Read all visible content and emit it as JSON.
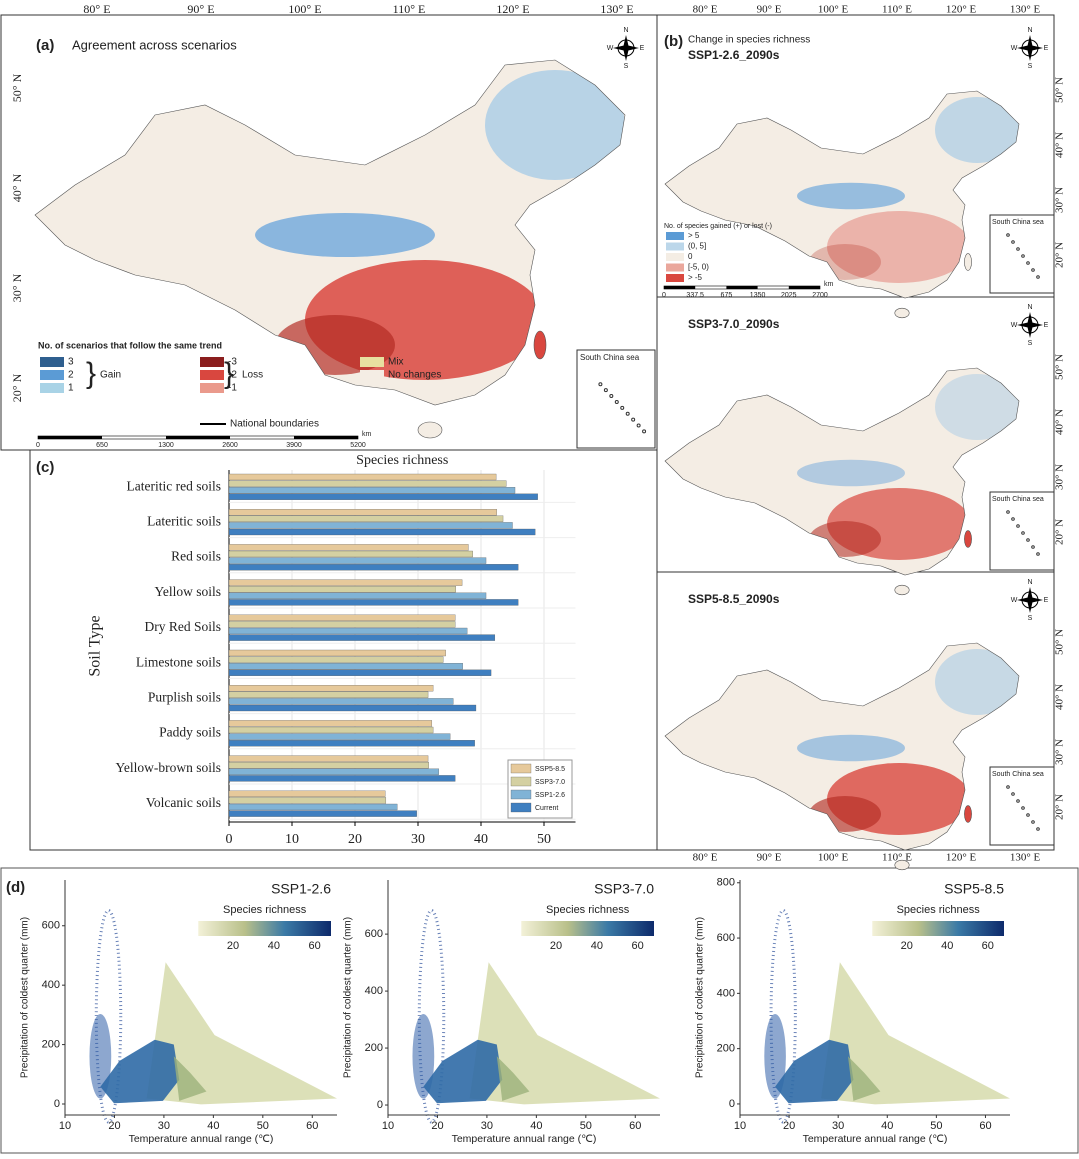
{
  "map_panels": [
    {
      "label": "(a)",
      "title": "Agreement across scenarios",
      "legend_title": "No. of scenarios that follow the same trend",
      "legend_items": [
        {
          "label": "3",
          "color": "#2f5f8f"
        },
        {
          "label": "2",
          "color": "#5b9bd5"
        },
        {
          "label": "1",
          "color": "#a9d3e6"
        },
        {
          "label": "-3",
          "color": "#8b1e1e"
        },
        {
          "label": "-2",
          "color": "#d9473f"
        },
        {
          "label": "-1",
          "color": "#ea9a8c"
        },
        {
          "label": "Mix",
          "color": "#e8e0a0"
        },
        {
          "label": "No changes",
          "color": "#f4ede4"
        }
      ],
      "group_labels": [
        "Gain",
        "Loss"
      ],
      "boundary_label": "National boundaries",
      "scale_labels": [
        "0",
        "650",
        "1300",
        "2600",
        "3900",
        "5200"
      ],
      "scale_unit": "km",
      "inset": "South China sea"
    },
    {
      "label": "(b)",
      "title": "Change in species richness",
      "subpanels": [
        "SSP1-2.6_2090s",
        "SSP3-7.0_2090s",
        "SSP5-8.5_2090s"
      ],
      "legend_title": "No. of species gained (+) or lost (-)",
      "legend_items": [
        {
          "label": "> 5",
          "color": "#5b9bd5"
        },
        {
          "label": "(0, 5]",
          "color": "#bcd7ea"
        },
        {
          "label": "0",
          "color": "#f4ede4"
        },
        {
          "label": "[-5, 0)",
          "color": "#eaa79c"
        },
        {
          "label": "> -5",
          "color": "#d9473f"
        }
      ],
      "scale_labels": [
        "0",
        "337.5",
        "675",
        "1350",
        "2025",
        "2700"
      ],
      "scale_unit": "km",
      "inset": "South China sea"
    }
  ],
  "lon_labels": [
    "80° E",
    "90° E",
    "100° E",
    "110° E",
    "120° E",
    "130° E"
  ],
  "lat_labels": [
    "50° N",
    "40° N",
    "30° N",
    "20° N"
  ],
  "compass": [
    "N",
    "E",
    "S",
    "W"
  ],
  "chart_data": [
    {
      "type": "bar",
      "panel_label": "(c)",
      "title": "Species richness",
      "ylabel": "Soil Type",
      "categories": [
        "Lateritic red soils",
        "Lateritic soils",
        "Red soils",
        "Yellow soils",
        "Dry Red Soils",
        "Limestone soils",
        "Purplish soils",
        "Paddy soils",
        "Yellow-brown soils",
        "Volcanic soils"
      ],
      "series": [
        {
          "name": "SSP5-8.5",
          "color": "#e6c99b",
          "values": [
            42.4,
            42.5,
            38,
            37,
            35.9,
            34.4,
            32.4,
            32.2,
            31.6,
            24.8
          ]
        },
        {
          "name": "SSP3-7.0",
          "color": "#d4d0a2",
          "values": [
            44,
            43.5,
            38.7,
            36,
            35.9,
            34,
            31.6,
            32.4,
            31.7,
            24.9
          ]
        },
        {
          "name": "SSP1-2.6",
          "color": "#80b3d6",
          "values": [
            45.4,
            45,
            40.8,
            40.8,
            37.8,
            37.1,
            35.6,
            35.1,
            33.3,
            26.7
          ]
        },
        {
          "name": "Current",
          "color": "#3f7fc0",
          "values": [
            49,
            48.6,
            45.9,
            45.9,
            42.2,
            41.6,
            39.2,
            39,
            35.9,
            29.8
          ]
        }
      ],
      "xlim": [
        0,
        55
      ],
      "xticks": [
        0,
        10,
        20,
        30,
        40,
        50
      ]
    },
    {
      "type": "scatter",
      "panel_label": "(d)",
      "title": "SSP1-2.6",
      "xlabel": "Temperature annual range (℃)",
      "ylabel": "Precipitation of coldest quarter (mm)",
      "xlim": [
        10,
        65
      ],
      "xticks": [
        10,
        20,
        30,
        40,
        50,
        60
      ],
      "ylim": [
        -37,
        754
      ],
      "yticks": [
        0,
        200,
        400,
        600
      ],
      "colorbar_title": "Species richness",
      "clim": [
        3,
        68
      ],
      "cticks": [
        20,
        40,
        60
      ]
    },
    {
      "type": "scatter",
      "title": "SSP3-7.0",
      "xlabel": "Temperature annual range (℃)",
      "ylabel": "Precipitation of coldest quarter (mm)",
      "xlim": [
        10,
        65
      ],
      "xticks": [
        10,
        20,
        30,
        40,
        50,
        60
      ],
      "ylim": [
        -35,
        790
      ],
      "yticks": [
        0,
        200,
        400,
        600
      ],
      "colorbar_title": "Species richness",
      "clim": [
        3,
        68
      ],
      "cticks": [
        20,
        40,
        60
      ]
    },
    {
      "type": "scatter",
      "title": "SSP5-8.5",
      "xlabel": "Temperature annual range (℃)",
      "ylabel": "Precipitation of coldest quarter (mm)",
      "xlim": [
        10,
        65
      ],
      "xticks": [
        10,
        20,
        30,
        40,
        50,
        60
      ],
      "ylim": [
        -40,
        810
      ],
      "yticks": [
        0,
        200,
        400,
        600,
        800
      ],
      "colorbar_title": "Species richness",
      "clim": [
        3,
        68
      ],
      "cticks": [
        20,
        40,
        60
      ]
    }
  ]
}
